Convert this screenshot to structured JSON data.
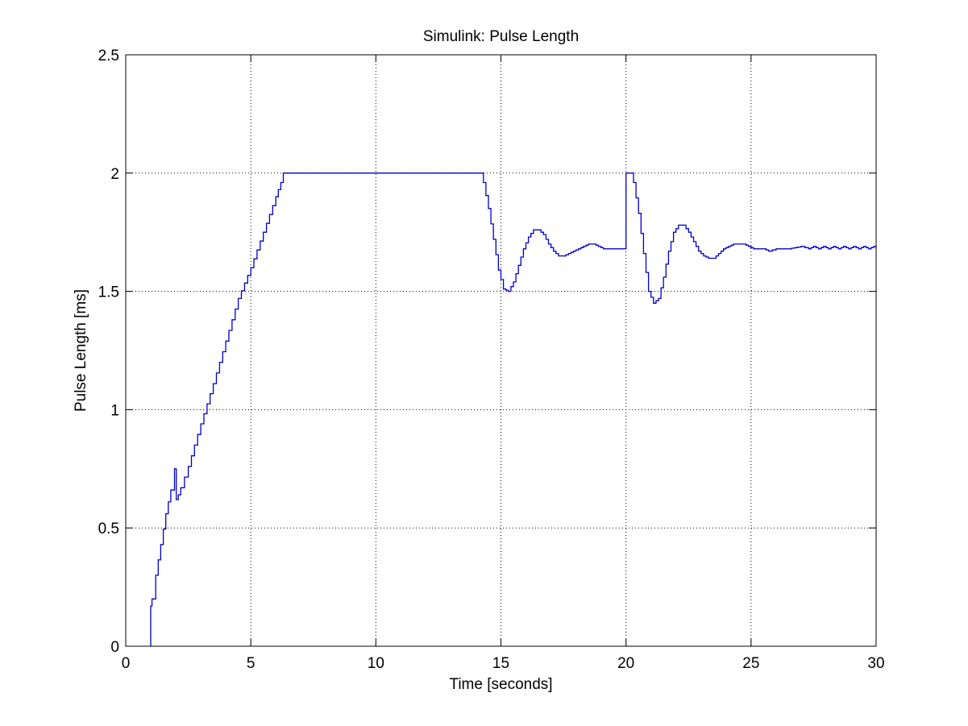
{
  "chart_data": {
    "type": "line",
    "title": "Simulink: Pulse Length",
    "xlabel": "Time [seconds]",
    "ylabel": "Pulse Length [ms]",
    "xlim": [
      0,
      30
    ],
    "ylim": [
      0,
      2.5
    ],
    "xticks": [
      0,
      5,
      10,
      15,
      20,
      25,
      30
    ],
    "yticks": [
      0,
      0.5,
      1,
      1.5,
      2,
      2.5
    ],
    "xtick_labels": [
      "0",
      "5",
      "10",
      "15",
      "20",
      "25",
      "30"
    ],
    "ytick_labels": [
      "0",
      "0.5",
      "1",
      "1.5",
      "2",
      "2.5"
    ],
    "grid": true,
    "line_style": "stairs",
    "series": [
      {
        "color": "#0000cc",
        "x": [
          1.0,
          1.0,
          1.05,
          1.2,
          1.4,
          1.6,
          1.8,
          1.95,
          2.02,
          2.1,
          2.2,
          2.5,
          3.0,
          3.5,
          4.0,
          4.5,
          5.0,
          5.5,
          6.0,
          6.2,
          6.3,
          7.0,
          8.0,
          9.0,
          10.0,
          11.0,
          12.0,
          13.0,
          14.0,
          14.2,
          14.3,
          14.5,
          14.7,
          14.9,
          15.1,
          15.3,
          15.5,
          15.7,
          15.9,
          16.1,
          16.3,
          16.5,
          16.7,
          16.9,
          17.1,
          17.3,
          17.5,
          17.7,
          17.9,
          18.1,
          18.3,
          18.5,
          18.7,
          18.9,
          19.1,
          19.3,
          19.5,
          19.7,
          19.9,
          19.95,
          20.0,
          20.0,
          20.2,
          20.3,
          20.5,
          20.7,
          20.9,
          21.1,
          21.3,
          21.5,
          21.7,
          21.9,
          22.1,
          22.3,
          22.5,
          22.7,
          22.9,
          23.1,
          23.3,
          23.5,
          23.7,
          23.9,
          24.1,
          24.3,
          24.5,
          24.7,
          24.9,
          25.1,
          25.5,
          25.7,
          26.0,
          26.5,
          27.0,
          27.3,
          27.5,
          27.7,
          27.9,
          28.1,
          28.3,
          28.5,
          28.7,
          28.9,
          29.1,
          29.3,
          29.5,
          29.7,
          29.9,
          30.0
        ],
        "y": [
          0.0,
          0.17,
          0.2,
          0.3,
          0.43,
          0.56,
          0.66,
          0.75,
          0.62,
          0.64,
          0.67,
          0.76,
          0.94,
          1.11,
          1.29,
          1.47,
          1.6,
          1.75,
          1.9,
          1.96,
          2.0,
          2.0,
          2.0,
          2.0,
          2.0,
          2.0,
          2.0,
          2.0,
          2.0,
          2.0,
          1.96,
          1.85,
          1.72,
          1.59,
          1.51,
          1.5,
          1.54,
          1.61,
          1.68,
          1.73,
          1.76,
          1.76,
          1.74,
          1.7,
          1.67,
          1.65,
          1.65,
          1.66,
          1.67,
          1.68,
          1.69,
          1.7,
          1.7,
          1.69,
          1.68,
          1.68,
          1.68,
          1.68,
          1.68,
          1.68,
          1.68,
          2.0,
          2.0,
          1.96,
          1.83,
          1.66,
          1.5,
          1.45,
          1.47,
          1.56,
          1.67,
          1.75,
          1.78,
          1.78,
          1.75,
          1.71,
          1.67,
          1.65,
          1.64,
          1.64,
          1.66,
          1.68,
          1.69,
          1.7,
          1.7,
          1.7,
          1.69,
          1.68,
          1.68,
          1.67,
          1.68,
          1.68,
          1.69,
          1.68,
          1.69,
          1.68,
          1.69,
          1.68,
          1.69,
          1.68,
          1.69,
          1.68,
          1.69,
          1.68,
          1.69,
          1.68,
          1.69,
          1.68
        ]
      }
    ]
  }
}
